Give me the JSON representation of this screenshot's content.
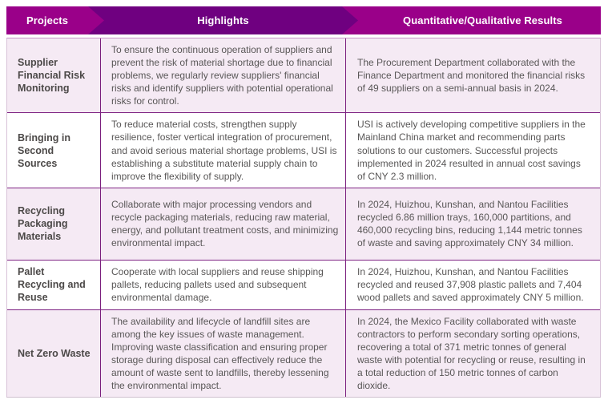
{
  "header": {
    "columns": [
      "Projects",
      "Highlights",
      "Quantitative/Qualitative Results"
    ]
  },
  "table": {
    "rows": [
      {
        "project": "Supplier Financial Risk Monitoring",
        "highlight": "To ensure the continuous operation of suppliers and prevent the risk of material shortage due to financial problems, we regularly review suppliers' financial risks and identify suppliers with potential operational risks for control.",
        "result": "The Procurement Department collaborated with the Finance Department and monitored the financial risks of 49 suppliers on a semi-annual basis in 2024."
      },
      {
        "project": "Bringing in Second Sources",
        "highlight": "To reduce material costs, strengthen supply resilience, foster vertical integration of procurement, and avoid serious material shortage problems, USI is establishing a substitute material supply chain to improve the flexibility of supply.",
        "result": "USI is actively developing competitive suppliers in the Mainland China market and recommending parts solutions to our customers. Successful projects implemented in 2024 resulted in annual cost savings of CNY 2.3 million."
      },
      {
        "project": "Recycling Packaging Materials",
        "highlight": "Collaborate with major processing vendors and recycle packaging materials, reducing raw material, energy, and pollutant treatment costs, and minimizing environmental impact.",
        "result": "In 2024, Huizhou, Kunshan, and Nantou Facilities recycled 6.86 million trays, 160,000 partitions, and 460,000 recycling bins, reducing 1,144 metric tonnes of waste and saving approximately CNY 34 million."
      },
      {
        "project": "Pallet Recycling and Reuse",
        "highlight": "Cooperate with local suppliers and reuse shipping pallets, reducing pallets used and subsequent environmental damage.",
        "result": "In 2024, Huizhou, Kunshan, and Nantou Facilities recycled and reused 37,908 plastic pallets and 7,404 wood pallets and saved approximately CNY 5 million."
      },
      {
        "project": "Net Zero Waste",
        "highlight": "The availability and lifecycle of landfill sites are among the key issues of waste management. Improving waste classification and ensuring proper storage during disposal can effectively reduce the amount of waste sent to landfills, thereby lessening the environmental impact.",
        "result": "In 2024, the Mexico Facility collaborated with waste contractors to perform secondary sorting operations, recovering a total of 371 metric tonnes of general waste with potential for recycling or reuse, resulting in a total reduction of 150 metric tonnes of carbon dioxide."
      }
    ]
  },
  "colors": {
    "header_magenta": "#9A0089",
    "header_dark_purple": "#6F0080",
    "row_shaded_bg": "#F5EAF4",
    "row_plain_bg": "#FFFFFF",
    "divider_purple": "#7A1F7D",
    "row_separator": "#7E2383",
    "project_text": "#4C4948",
    "body_text": "#595757"
  }
}
